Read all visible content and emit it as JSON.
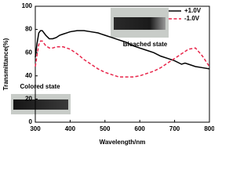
{
  "chart_data": {
    "type": "line",
    "x_label": "Wavelength/nm",
    "y_label": "Transmittance(%)",
    "x": [
      300,
      305,
      310,
      315,
      320,
      330,
      340,
      350,
      360,
      370,
      380,
      390,
      400,
      420,
      440,
      460,
      480,
      500,
      520,
      540,
      560,
      580,
      600,
      620,
      640,
      660,
      680,
      700,
      720,
      730,
      740,
      760,
      780,
      800
    ],
    "series": [
      {
        "name": "+1.0V",
        "color": "#000000",
        "style": "solid",
        "values": [
          56,
          68,
          77,
          79,
          79,
          75,
          72,
          72,
          73,
          75,
          76,
          77,
          78,
          79,
          79,
          78,
          77,
          75,
          73,
          71,
          69,
          66,
          64,
          62,
          60,
          57,
          55,
          53,
          50,
          51,
          50,
          48,
          47,
          46
        ]
      },
      {
        "name": "-1.0V",
        "color": "#e8254a",
        "style": "dashed",
        "values": [
          48,
          58,
          67,
          70,
          70,
          66,
          64,
          64,
          65,
          65,
          65,
          64,
          63,
          59,
          54,
          50,
          46,
          43,
          41,
          39,
          39,
          39,
          40,
          42,
          44,
          47,
          51,
          55,
          59,
          61,
          63,
          64,
          57,
          48
        ]
      }
    ],
    "xlim": [
      300,
      800
    ],
    "xticks": [
      300,
      400,
      500,
      600,
      700,
      800
    ],
    "ylim": [
      0,
      100
    ],
    "yticks": [
      0,
      20,
      40,
      60,
      80,
      100
    ],
    "grid": false,
    "legend": "top-right",
    "annotations": [
      "Bleached state",
      "Colored state"
    ]
  }
}
